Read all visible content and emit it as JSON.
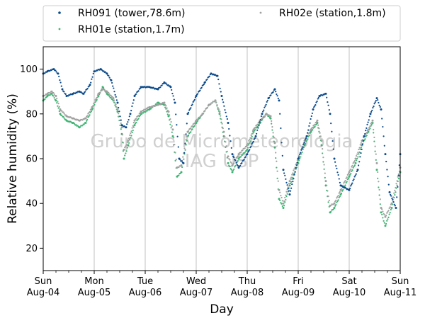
{
  "chart_data": {
    "type": "scatter",
    "title": "",
    "xlabel": "Day",
    "ylabel": "Relative humidity (%)",
    "ylim": [
      10,
      110
    ],
    "xlim": [
      "2019-08-04 00:00",
      "2019-08-11 00:00"
    ],
    "yticks": [
      20,
      40,
      60,
      80,
      100
    ],
    "xticks": [
      {
        "day": "Sun",
        "date": "Aug-04"
      },
      {
        "day": "Mon",
        "date": "Aug-05"
      },
      {
        "day": "Tue",
        "date": "Aug-06"
      },
      {
        "day": "Wed",
        "date": "Aug-07"
      },
      {
        "day": "Thu",
        "date": "Aug-08"
      },
      {
        "day": "Fri",
        "date": "Aug-09"
      },
      {
        "day": "Sat",
        "date": "Aug-10"
      },
      {
        "day": "Sun",
        "date": "Aug-11"
      }
    ],
    "grid": "vertical-major",
    "legend_placement": "top",
    "watermark": [
      "Grupo de Micrometeorologia",
      "IAG USP"
    ],
    "series": [
      {
        "name": "RH091 (tower,78.6m)",
        "color": "#0b4a8b",
        "x": [
          "2019-08-04 00:00",
          "2019-08-04 02:00",
          "2019-08-04 05:00",
          "2019-08-04 07:00",
          "2019-08-04 09:00",
          "2019-08-04 11:00",
          "2019-08-04 14:00",
          "2019-08-04 17:00",
          "2019-08-04 19:00",
          "2019-08-04 22:00",
          "2019-08-05 00:00",
          "2019-08-05 03:00",
          "2019-08-05 06:00",
          "2019-08-05 08:00",
          "2019-08-05 11:00",
          "2019-08-05 13:00",
          "2019-08-05 15:00",
          "2019-08-05 17:00",
          "2019-08-05 19:00",
          "2019-08-05 22:00",
          "2019-08-06 02:00",
          "2019-08-06 06:00",
          "2019-08-06 09:00",
          "2019-08-06 12:00",
          "2019-08-06 14:00",
          "2019-08-06 16:00",
          "2019-08-06 18:00",
          "2019-08-06 20:00",
          "2019-08-07 00:00",
          "2019-08-07 04:00",
          "2019-08-07 07:00",
          "2019-08-07 10:00",
          "2019-08-07 12:00",
          "2019-08-07 15:00",
          "2019-08-07 17:00",
          "2019-08-07 20:00",
          "2019-08-08 00:00",
          "2019-08-08 04:00",
          "2019-08-08 07:00",
          "2019-08-08 10:00",
          "2019-08-08 13:00",
          "2019-08-08 15:00",
          "2019-08-08 17:00",
          "2019-08-08 20:00",
          "2019-08-09 00:00",
          "2019-08-09 04:00",
          "2019-08-09 07:00",
          "2019-08-09 10:00",
          "2019-08-09 13:00",
          "2019-08-09 15:00",
          "2019-08-09 17:00",
          "2019-08-09 20:00",
          "2019-08-10 00:00",
          "2019-08-10 04:00",
          "2019-08-10 07:00",
          "2019-08-10 10:00",
          "2019-08-10 13:00",
          "2019-08-10 15:00",
          "2019-08-10 17:00",
          "2019-08-10 19:00",
          "2019-08-10 22:00",
          "2019-08-11 00:00"
        ],
        "y": [
          98,
          99,
          100,
          98,
          91,
          88,
          89,
          90,
          89,
          93,
          99,
          100,
          98,
          95,
          85,
          75,
          74,
          80,
          88,
          92,
          92,
          91,
          94,
          92,
          85,
          60,
          58,
          80,
          88,
          94,
          98,
          97,
          88,
          76,
          62,
          56,
          62,
          70,
          80,
          87,
          91,
          86,
          55,
          44,
          60,
          70,
          82,
          88,
          89,
          80,
          60,
          48,
          46,
          55,
          70,
          80,
          87,
          82,
          62,
          45,
          38,
          62
        ]
      },
      {
        "name": "RH01e (station,1.7m)",
        "color": "#3cb371",
        "x": [
          "2019-08-04 00:00",
          "2019-08-04 02:00",
          "2019-08-04 04:00",
          "2019-08-04 06:00",
          "2019-08-04 08:00",
          "2019-08-04 11:00",
          "2019-08-04 14:00",
          "2019-08-04 17:00",
          "2019-08-04 20:00",
          "2019-08-04 23:00",
          "2019-08-05 02:00",
          "2019-08-05 04:00",
          "2019-08-05 06:00",
          "2019-08-05 09:00",
          "2019-08-05 11:00",
          "2019-08-05 13:00",
          "2019-08-05 14:00",
          "2019-08-05 16:00",
          "2019-08-05 19:00",
          "2019-08-05 22:00",
          "2019-08-06 02:00",
          "2019-08-06 06:00",
          "2019-08-06 09:00",
          "2019-08-06 11:00",
          "2019-08-06 13:00",
          "2019-08-06 15:00",
          "2019-08-06 17:00",
          "2019-08-06 20:00",
          "2019-08-07 00:00",
          "2019-08-07 03:00",
          "2019-08-07 06:00",
          "2019-08-07 09:00",
          "2019-08-07 11:00",
          "2019-08-07 13:00",
          "2019-08-07 15:00",
          "2019-08-07 17:00",
          "2019-08-07 20:00",
          "2019-08-08 00:00",
          "2019-08-08 03:00",
          "2019-08-08 06:00",
          "2019-08-08 09:00",
          "2019-08-08 11:00",
          "2019-08-08 13:00",
          "2019-08-08 15:00",
          "2019-08-08 17:00",
          "2019-08-08 20:00",
          "2019-08-09 00:00",
          "2019-08-09 03:00",
          "2019-08-09 06:00",
          "2019-08-09 09:00",
          "2019-08-09 11:00",
          "2019-08-09 13:00",
          "2019-08-09 15:00",
          "2019-08-09 17:00",
          "2019-08-09 20:00",
          "2019-08-10 00:00",
          "2019-08-10 03:00",
          "2019-08-10 06:00",
          "2019-08-10 09:00",
          "2019-08-10 11:00",
          "2019-08-10 13:00",
          "2019-08-10 15:00",
          "2019-08-10 17:00",
          "2019-08-10 20:00",
          "2019-08-11 00:00"
        ],
        "y": [
          86,
          88,
          89,
          86,
          80,
          77,
          76,
          74,
          76,
          82,
          88,
          92,
          89,
          86,
          81,
          71,
          60,
          66,
          75,
          80,
          82,
          85,
          84,
          79,
          70,
          52,
          54,
          70,
          76,
          80,
          84,
          86,
          80,
          70,
          58,
          54,
          60,
          64,
          72,
          76,
          80,
          78,
          65,
          42,
          38,
          48,
          58,
          66,
          72,
          76,
          66,
          48,
          36,
          38,
          44,
          52,
          58,
          66,
          72,
          76,
          55,
          36,
          30,
          38,
          54
        ]
      },
      {
        "name": "RH02e (station,1.8m)",
        "color": "#a0a0a0",
        "x": [
          "2019-08-04 00:00",
          "2019-08-04 02:00",
          "2019-08-04 04:00",
          "2019-08-04 06:00",
          "2019-08-04 08:00",
          "2019-08-04 11:00",
          "2019-08-04 14:00",
          "2019-08-04 17:00",
          "2019-08-04 20:00",
          "2019-08-04 23:00",
          "2019-08-05 02:00",
          "2019-08-05 04:00",
          "2019-08-05 06:00",
          "2019-08-05 09:00",
          "2019-08-05 11:00",
          "2019-08-05 13:00",
          "2019-08-05 14:00",
          "2019-08-05 16:00",
          "2019-08-05 19:00",
          "2019-08-05 22:00",
          "2019-08-06 02:00",
          "2019-08-06 06:00",
          "2019-08-06 09:00",
          "2019-08-06 11:00",
          "2019-08-06 13:00",
          "2019-08-06 15:00",
          "2019-08-06 17:00",
          "2019-08-06 20:00",
          "2019-08-07 00:00",
          "2019-08-07 03:00",
          "2019-08-07 06:00",
          "2019-08-07 09:00",
          "2019-08-07 11:00",
          "2019-08-07 13:00",
          "2019-08-07 15:00",
          "2019-08-07 17:00",
          "2019-08-07 20:00",
          "2019-08-08 00:00",
          "2019-08-08 03:00",
          "2019-08-08 06:00",
          "2019-08-08 09:00",
          "2019-08-08 11:00",
          "2019-08-08 13:00",
          "2019-08-08 15:00",
          "2019-08-08 17:00",
          "2019-08-08 20:00",
          "2019-08-09 00:00",
          "2019-08-09 03:00",
          "2019-08-09 06:00",
          "2019-08-09 09:00",
          "2019-08-09 11:00",
          "2019-08-09 13:00",
          "2019-08-09 15:00",
          "2019-08-09 17:00",
          "2019-08-09 20:00",
          "2019-08-10 00:00",
          "2019-08-10 03:00",
          "2019-08-10 06:00",
          "2019-08-10 09:00",
          "2019-08-10 11:00",
          "2019-08-10 13:00",
          "2019-08-10 15:00",
          "2019-08-10 17:00",
          "2019-08-10 20:00",
          "2019-08-11 00:00"
        ],
        "y": [
          88,
          89,
          90,
          88,
          82,
          79,
          78,
          77,
          78,
          83,
          89,
          91,
          90,
          87,
          82,
          74,
          64,
          68,
          77,
          81,
          83,
          84,
          85,
          81,
          73,
          56,
          57,
          72,
          77,
          80,
          84,
          86,
          81,
          72,
          61,
          57,
          62,
          66,
          73,
          77,
          80,
          79,
          67,
          46,
          40,
          50,
          60,
          68,
          73,
          77,
          68,
          50,
          39,
          40,
          46,
          54,
          60,
          68,
          73,
          77,
          58,
          38,
          34,
          40,
          56
        ]
      }
    ]
  }
}
